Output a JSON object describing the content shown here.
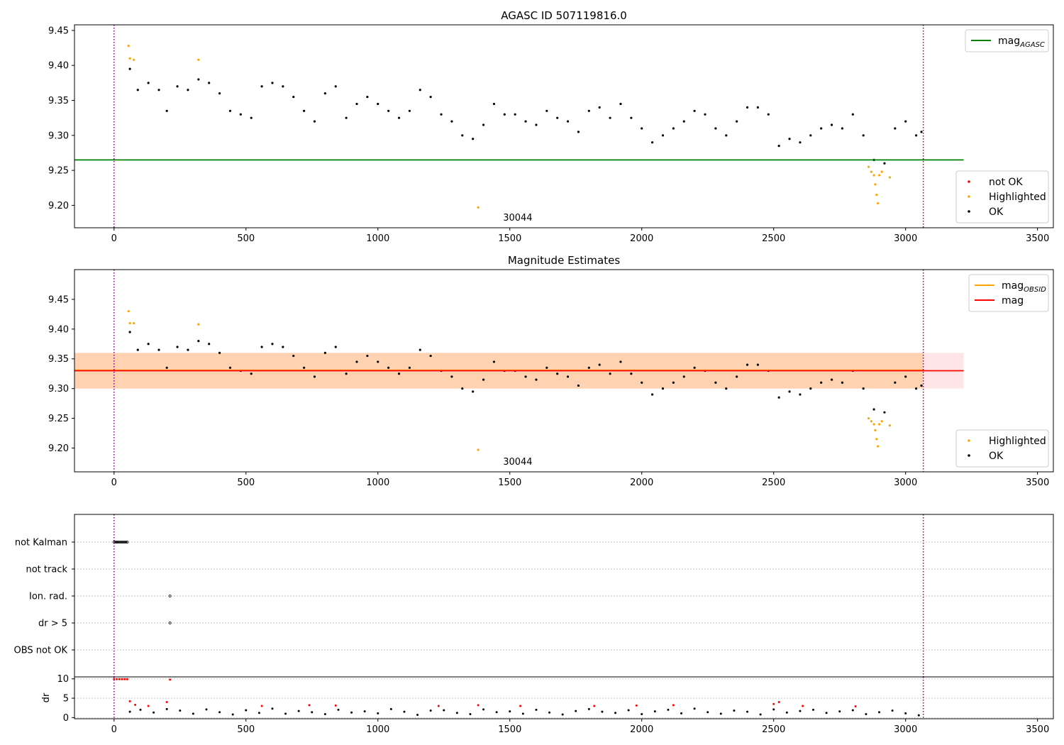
{
  "chart_data": [
    {
      "type": "scatter",
      "title": "AGASC ID 507119816.0",
      "xlim": [
        -150,
        3560
      ],
      "ylim": [
        9.168,
        9.458
      ],
      "xticks": [
        0,
        500,
        1000,
        1500,
        2000,
        2500,
        3000,
        3500
      ],
      "xtick_labels": [
        "0",
        "500",
        "1000",
        "1500",
        "2000",
        "2500",
        "3000",
        "3500"
      ],
      "yticks": [
        9.2,
        9.25,
        9.3,
        9.35,
        9.4,
        9.45
      ],
      "ytick_labels": [
        "9.20",
        "9.25",
        "9.30",
        "9.35",
        "9.40",
        "9.45"
      ],
      "vlines": [
        0,
        3067
      ],
      "hlines": [
        {
          "name": "mag",
          "sub": "AGASC",
          "y": 9.265,
          "x": [
            -150,
            3220
          ],
          "color": "#008000"
        }
      ],
      "annotation": {
        "text": "30044",
        "x": 1530,
        "y": 9.182
      },
      "legend_top": [
        {
          "name": "mag",
          "sub": "AGASC",
          "color": "#008000",
          "kind": "line"
        }
      ],
      "legend_bottom": [
        {
          "name": "not OK",
          "color": "#ff0000",
          "kind": "point"
        },
        {
          "name": "Highlighted",
          "color": "#ffa500",
          "kind": "point"
        },
        {
          "name": "OK",
          "color": "#000000",
          "kind": "point"
        }
      ],
      "series": [
        {
          "name": "OK",
          "color": "#000000",
          "x": [
            60,
            90,
            130,
            170,
            200,
            240,
            280,
            320,
            360,
            400,
            440,
            480,
            520,
            560,
            600,
            640,
            680,
            720,
            760,
            800,
            840,
            880,
            920,
            960,
            1000,
            1040,
            1080,
            1120,
            1160,
            1200,
            1240,
            1280,
            1320,
            1360,
            1400,
            1440,
            1480,
            1520,
            1560,
            1600,
            1640,
            1680,
            1720,
            1760,
            1800,
            1840,
            1880,
            1920,
            1960,
            2000,
            2040,
            2080,
            2120,
            2160,
            2200,
            2240,
            2280,
            2320,
            2360,
            2400,
            2440,
            2480,
            2520,
            2560,
            2600,
            2640,
            2680,
            2720,
            2760,
            2800,
            2840,
            2880,
            2920,
            2960,
            3000,
            3040,
            3060
          ],
          "y": [
            9.395,
            9.365,
            9.375,
            9.365,
            9.335,
            9.37,
            9.365,
            9.38,
            9.375,
            9.36,
            9.335,
            9.33,
            9.325,
            9.37,
            9.375,
            9.37,
            9.355,
            9.335,
            9.32,
            9.36,
            9.37,
            9.325,
            9.345,
            9.355,
            9.345,
            9.335,
            9.325,
            9.335,
            9.365,
            9.355,
            9.33,
            9.32,
            9.3,
            9.295,
            9.315,
            9.345,
            9.33,
            9.33,
            9.32,
            9.315,
            9.335,
            9.325,
            9.32,
            9.305,
            9.335,
            9.34,
            9.325,
            9.345,
            9.325,
            9.31,
            9.29,
            9.3,
            9.31,
            9.32,
            9.335,
            9.33,
            9.31,
            9.3,
            9.32,
            9.34,
            9.34,
            9.33,
            9.285,
            9.295,
            9.29,
            9.3,
            9.31,
            9.315,
            9.31,
            9.33,
            9.3,
            9.265,
            9.26,
            9.31,
            9.32,
            9.3,
            9.305
          ]
        },
        {
          "name": "Highlighted",
          "color": "#ffa500",
          "x": [
            55,
            60,
            75,
            320,
            1380,
            2860,
            2870,
            2880,
            2885,
            2890,
            2895,
            2900,
            2910,
            2940
          ],
          "y": [
            9.428,
            9.41,
            9.408,
            9.408,
            9.197,
            9.255,
            9.248,
            9.243,
            9.23,
            9.215,
            9.203,
            9.243,
            9.248,
            9.24
          ]
        }
      ]
    },
    {
      "type": "scatter",
      "title": "Magnitude Estimates",
      "xlim": [
        -150,
        3560
      ],
      "ylim": [
        9.16,
        9.5
      ],
      "xticks": [
        0,
        500,
        1000,
        1500,
        2000,
        2500,
        3000,
        3500
      ],
      "xtick_labels": [
        "0",
        "500",
        "1000",
        "1500",
        "2000",
        "2500",
        "3000",
        "3500"
      ],
      "yticks": [
        9.2,
        9.25,
        9.3,
        9.35,
        9.4,
        9.45
      ],
      "ytick_labels": [
        "9.20",
        "9.25",
        "9.30",
        "9.35",
        "9.40",
        "9.45"
      ],
      "vlines": [
        0,
        3067
      ],
      "hlines": [
        {
          "name": "mag",
          "sub": "OBSID",
          "y": 9.331,
          "x": [
            -150,
            3067
          ],
          "color": "#ffa500"
        },
        {
          "name": "mag",
          "sub": "",
          "y": 9.33,
          "x": [
            -150,
            3220
          ],
          "color": "#ff0000"
        }
      ],
      "bands": [
        {
          "y0": 9.3,
          "y1": 9.36,
          "x": [
            -150,
            3067
          ],
          "color": "#ffa500",
          "opacity": 0.22
        },
        {
          "y0": 9.3,
          "y1": 9.36,
          "x": [
            -150,
            3220
          ],
          "color": "#ff0000",
          "opacity": 0.1
        }
      ],
      "annotation": {
        "text": "30044",
        "x": 1530,
        "y": 9.177
      },
      "legend_top": [
        {
          "name": "mag",
          "sub": "OBSID",
          "color": "#ffa500",
          "kind": "line"
        },
        {
          "name": "mag",
          "sub": "",
          "color": "#ff0000",
          "kind": "line"
        }
      ],
      "legend_bottom": [
        {
          "name": "Highlighted",
          "color": "#ffa500",
          "kind": "point"
        },
        {
          "name": "OK",
          "color": "#000000",
          "kind": "point"
        }
      ],
      "series": [
        {
          "name": "OK",
          "color": "#000000",
          "x": [
            60,
            90,
            130,
            170,
            200,
            240,
            280,
            320,
            360,
            400,
            440,
            480,
            520,
            560,
            600,
            640,
            680,
            720,
            760,
            800,
            840,
            880,
            920,
            960,
            1000,
            1040,
            1080,
            1120,
            1160,
            1200,
            1240,
            1280,
            1320,
            1360,
            1400,
            1440,
            1480,
            1520,
            1560,
            1600,
            1640,
            1680,
            1720,
            1760,
            1800,
            1840,
            1880,
            1920,
            1960,
            2000,
            2040,
            2080,
            2120,
            2160,
            2200,
            2240,
            2280,
            2320,
            2360,
            2400,
            2440,
            2480,
            2520,
            2560,
            2600,
            2640,
            2680,
            2720,
            2760,
            2800,
            2840,
            2880,
            2920,
            2960,
            3000,
            3040,
            3060
          ],
          "y": [
            9.395,
            9.365,
            9.375,
            9.365,
            9.335,
            9.37,
            9.365,
            9.38,
            9.375,
            9.36,
            9.335,
            9.33,
            9.325,
            9.37,
            9.375,
            9.37,
            9.355,
            9.335,
            9.32,
            9.36,
            9.37,
            9.325,
            9.345,
            9.355,
            9.345,
            9.335,
            9.325,
            9.335,
            9.365,
            9.355,
            9.33,
            9.32,
            9.3,
            9.295,
            9.315,
            9.345,
            9.33,
            9.33,
            9.32,
            9.315,
            9.335,
            9.325,
            9.32,
            9.305,
            9.335,
            9.34,
            9.325,
            9.345,
            9.325,
            9.31,
            9.29,
            9.3,
            9.31,
            9.32,
            9.335,
            9.33,
            9.31,
            9.3,
            9.32,
            9.34,
            9.34,
            9.33,
            9.285,
            9.295,
            9.29,
            9.3,
            9.31,
            9.315,
            9.31,
            9.33,
            9.3,
            9.265,
            9.26,
            9.31,
            9.32,
            9.3,
            9.305
          ]
        },
        {
          "name": "Highlighted",
          "color": "#ffa500",
          "x": [
            55,
            60,
            75,
            320,
            1380,
            2860,
            2870,
            2880,
            2885,
            2890,
            2895,
            2900,
            2910,
            2940
          ],
          "y": [
            9.43,
            9.41,
            9.41,
            9.408,
            9.197,
            9.25,
            9.245,
            9.24,
            9.23,
            9.215,
            9.203,
            9.24,
            9.245,
            9.238
          ]
        }
      ]
    },
    {
      "type": "scatter",
      "title": "",
      "xlim": [
        -150,
        3560
      ],
      "categories": [
        "not Kalman",
        "not track",
        "Ion. rad.",
        "dr > 5",
        "OBS not OK"
      ],
      "flags": [
        {
          "category": "not Kalman",
          "x": [
            0,
            5,
            10,
            15,
            20,
            25,
            30,
            35,
            40,
            45,
            50
          ]
        },
        {
          "category": "not track",
          "x": []
        },
        {
          "category": "Ion. rad.",
          "x": [
            212
          ]
        },
        {
          "category": "dr > 5",
          "x": [
            212
          ]
        },
        {
          "category": "OBS not OK",
          "x": []
        }
      ],
      "vlines": [
        0,
        3067
      ]
    },
    {
      "type": "scatter",
      "title": "",
      "ylabel": "dr",
      "xlim": [
        -150,
        3560
      ],
      "ylim": [
        -0.3,
        10.5
      ],
      "xticks": [
        0,
        500,
        1000,
        1500,
        2000,
        2500,
        3000,
        3500
      ],
      "xtick_labels": [
        "0",
        "500",
        "1000",
        "1500",
        "2000",
        "2500",
        "3000",
        "3500"
      ],
      "yticks": [
        0,
        5,
        10
      ],
      "ytick_labels": [
        "0",
        "5",
        "10"
      ],
      "vlines": [
        0,
        3067
      ],
      "series": [
        {
          "name": "OK",
          "color": "#000000",
          "x": [
            60,
            100,
            150,
            200,
            250,
            300,
            350,
            400,
            450,
            500,
            550,
            600,
            650,
            700,
            750,
            800,
            850,
            900,
            950,
            1000,
            1050,
            1100,
            1150,
            1200,
            1250,
            1300,
            1350,
            1400,
            1450,
            1500,
            1550,
            1600,
            1650,
            1700,
            1750,
            1800,
            1850,
            1900,
            1950,
            2000,
            2050,
            2100,
            2150,
            2200,
            2250,
            2300,
            2350,
            2400,
            2450,
            2500,
            2550,
            2600,
            2650,
            2700,
            2750,
            2800,
            2850,
            2900,
            2950,
            3000,
            3050
          ],
          "y": [
            1.5,
            2.0,
            1.3,
            2.2,
            1.8,
            1.0,
            2.1,
            1.4,
            0.8,
            1.9,
            1.2,
            2.3,
            1.0,
            1.7,
            1.4,
            0.9,
            2.0,
            1.3,
            1.6,
            1.1,
            2.2,
            1.5,
            0.7,
            1.8,
            1.9,
            1.2,
            0.9,
            2.1,
            1.4,
            1.6,
            1.0,
            2.0,
            1.3,
            0.8,
            1.7,
            2.2,
            1.5,
            1.2,
            1.9,
            0.9,
            1.6,
            2.0,
            1.1,
            2.3,
            1.4,
            1.0,
            1.8,
            1.5,
            0.8,
            2.1,
            1.3,
            1.7,
            2.0,
            1.2,
            1.6,
            1.9,
            0.9,
            1.4,
            1.8,
            1.1,
            0.6
          ]
        },
        {
          "name": "not OK",
          "color": "#ff0000",
          "x": [
            0,
            10,
            20,
            30,
            40,
            50,
            60,
            80,
            130,
            200,
            212,
            560,
            740,
            840,
            1230,
            1380,
            1540,
            1820,
            1980,
            2120,
            2500,
            2520,
            2610,
            2810
          ],
          "y": [
            9.9,
            9.9,
            9.9,
            9.9,
            9.9,
            9.9,
            4.2,
            3.3,
            3.0,
            4.0,
            9.8,
            3.0,
            3.2,
            3.1,
            3.0,
            3.2,
            3.0,
            3.0,
            3.1,
            3.2,
            3.5,
            4.0,
            3.0,
            2.9
          ]
        }
      ]
    }
  ]
}
